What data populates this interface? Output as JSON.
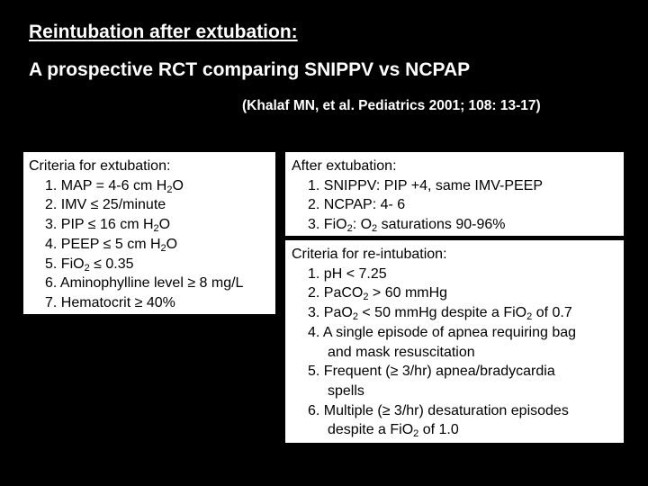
{
  "header": {
    "title": "Reintubation after extubation:",
    "subtitle": "A prospective RCT comparing SNIPPV vs NCPAP",
    "citation": "(Khalaf MN, et al.  Pediatrics 2001; 108: 13-17)"
  },
  "extubation_criteria": {
    "heading": "Criteria for extubation:",
    "items": {
      "i1": "1. MAP = 4-6 cm H",
      "i1_sub": "2",
      "i1_end": "O",
      "i2": "2. IMV ≤ 25/minute",
      "i3": "3. PIP ≤ 16 cm H",
      "i3_sub": "2",
      "i3_end": "O",
      "i4": "4. PEEP ≤ 5 cm H",
      "i4_sub": "2",
      "i4_end": "O",
      "i5": "5. FiO",
      "i5_sub": "2",
      "i5_end": " ≤ 0.35",
      "i6": "6. Aminophylline level ≥ 8 mg/L",
      "i7": "7. Hematocrit ≥ 40%"
    }
  },
  "after_extubation": {
    "heading": "After extubation:",
    "items": {
      "i1": "1. SNIPPV: PIP +4, same IMV-PEEP",
      "i2": "2. NCPAP: 4- 6",
      "i3a": "3. FiO",
      "i3a_sub": "2",
      "i3b": ": O",
      "i3b_sub": "2",
      "i3c": " saturations 90-96%"
    }
  },
  "reintubation_criteria": {
    "heading": "Criteria for re-intubation:",
    "items": {
      "i1": "1. pH < 7.25",
      "i2a": "2. PaCO",
      "i2a_sub": "2",
      "i2b": " > 60 mmHg",
      "i3a": "3. PaO",
      "i3a_sub": "2",
      "i3b": " < 50 mmHg despite a FiO",
      "i3b_sub": "2",
      "i3c": " of 0.7",
      "i4a": "4. A single episode of apnea requiring bag",
      "i4b": "and mask resuscitation",
      "i5a": "5. Frequent (≥ 3/hr) apnea/bradycardia",
      "i5b": "spells",
      "i6a": "6.  Multiple (≥ 3/hr) desaturation episodes",
      "i6b": "despite a FiO",
      "i6b_sub": "2",
      "i6b_end": " of 1.0"
    }
  }
}
